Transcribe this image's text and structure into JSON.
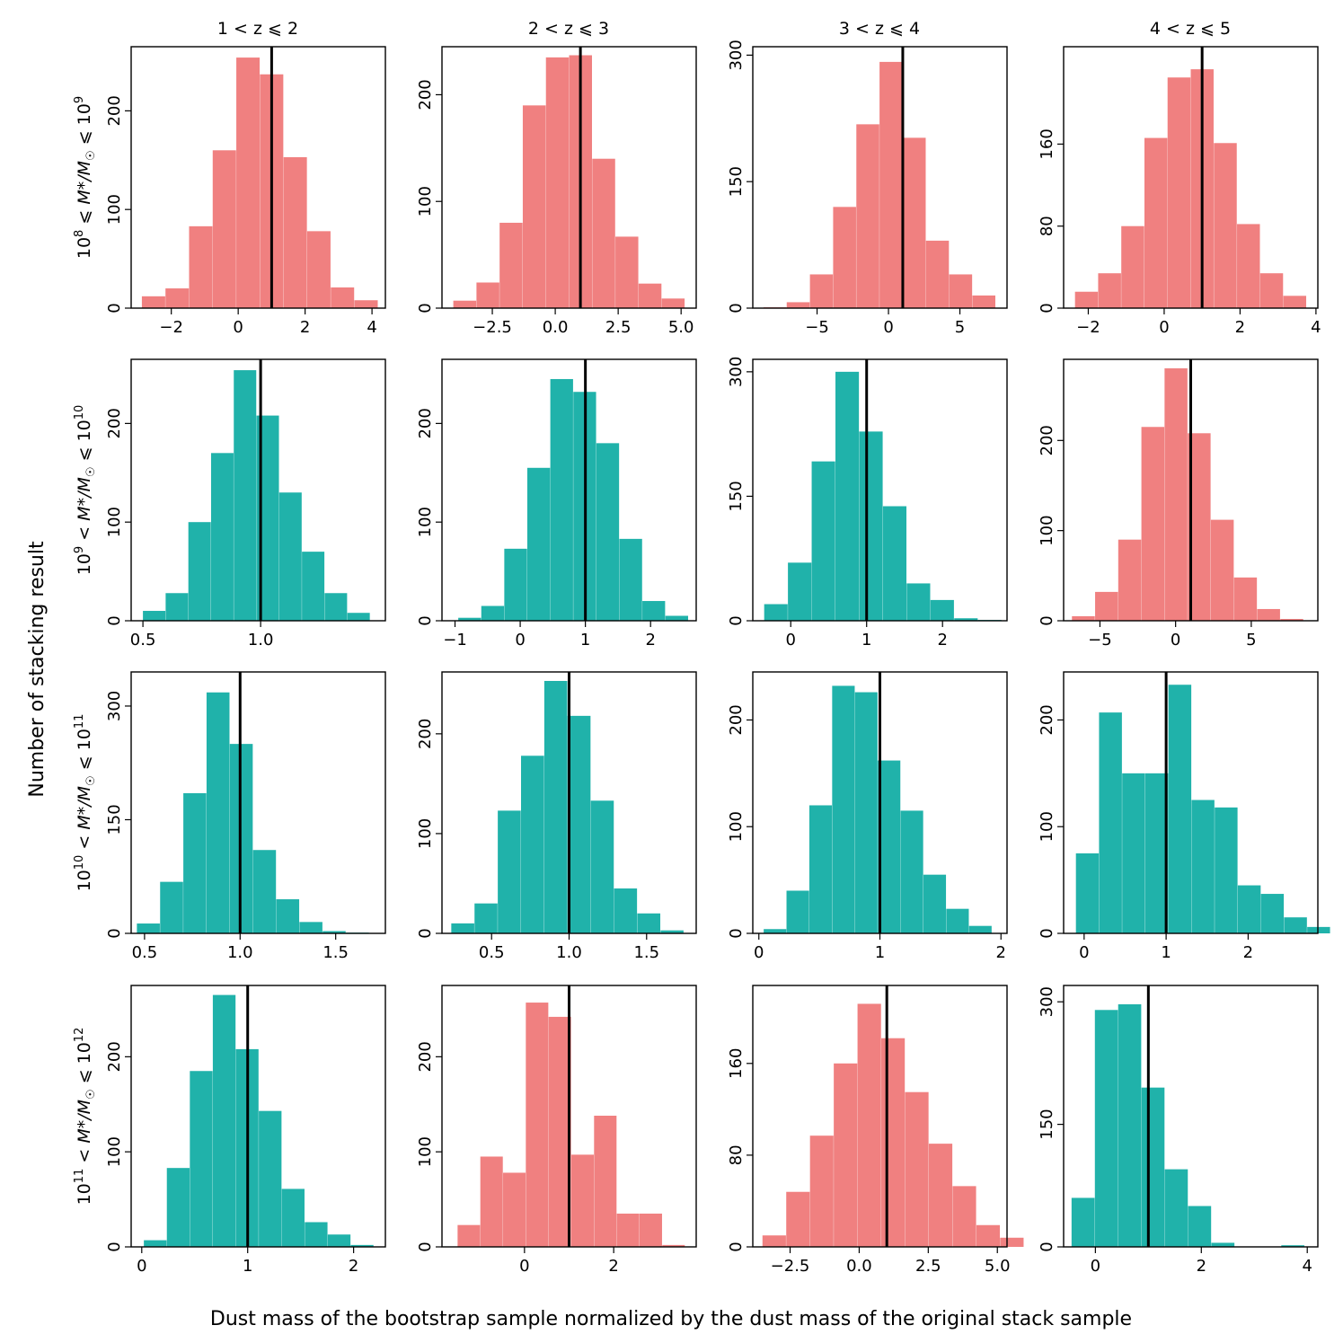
{
  "colors": {
    "red": "#f08080",
    "teal": "#20b2aa",
    "line": "#000000"
  },
  "chart_data": {
    "type": "bar",
    "figure_ylabel": "Number of stacking result",
    "figure_xlabel": "Dust mass of the bootstrap sample normalized by the dust mass of the original stack sample",
    "column_titles": [
      "1 < z ⩽ 2",
      "2 < z ⩽ 3",
      "3 < z ⩽ 4",
      "4 < z ⩽ 5"
    ],
    "row_labels": [
      {
        "base": "10",
        "e1": "8",
        "rel": " ⩽ ",
        "mid": "M",
        "midsub": "*",
        "slash": "/M",
        "sun": "☉",
        "rel2": " ⩽ ",
        "base2": "10",
        "e2": "9"
      },
      {
        "base": "10",
        "e1": "9",
        "rel": " < ",
        "mid": "M",
        "midsub": "*",
        "slash": "/M",
        "sun": "☉",
        "rel2": " ⩽ ",
        "base2": "10",
        "e2": "10"
      },
      {
        "base": "10",
        "e1": "10",
        "rel": " < ",
        "mid": "M",
        "midsub": "*",
        "slash": "/M",
        "sun": "☉",
        "rel2": " ⩽ ",
        "base2": "10",
        "e2": "11"
      },
      {
        "base": "10",
        "e1": "11",
        "rel": " < ",
        "mid": "M",
        "midsub": "*",
        "slash": "/M",
        "sun": "☉",
        "rel2": " ⩽ ",
        "base2": "10",
        "e2": "12"
      }
    ],
    "reference_line_x": 1,
    "panels": [
      {
        "row": 0,
        "col": 0,
        "color": "red",
        "xlim": [
          -3.2,
          4.4
        ],
        "ylim": [
          0,
          265
        ],
        "xticks": [
          -2,
          0,
          2,
          4
        ],
        "xticklabels": [
          "−2",
          "0",
          "2",
          "4"
        ],
        "yticks": [
          0,
          100,
          200
        ],
        "yticklabels": [
          "0",
          "100",
          "200"
        ],
        "bin_start": -2.88,
        "bin_width": 0.706,
        "counts": [
          12,
          20,
          83,
          160,
          254,
          237,
          153,
          78,
          21,
          8
        ]
      },
      {
        "row": 0,
        "col": 1,
        "color": "red",
        "xlim": [
          -4.5,
          5.6
        ],
        "ylim": [
          0,
          245
        ],
        "xticks": [
          -2.5,
          0.0,
          2.5,
          5.0
        ],
        "xticklabels": [
          "−2.5",
          "0.0",
          "2.5",
          "5.0"
        ],
        "yticks": [
          0,
          100,
          200
        ],
        "yticklabels": [
          "0",
          "100",
          "200"
        ],
        "bin_start": -4.05,
        "bin_width": 0.92,
        "counts": [
          7,
          24,
          80,
          190,
          235,
          237,
          140,
          67,
          23,
          9
        ]
      },
      {
        "row": 0,
        "col": 2,
        "color": "red",
        "xlim": [
          -9.5,
          8.3
        ],
        "ylim": [
          0,
          310
        ],
        "xticks": [
          -5,
          0,
          5
        ],
        "xticklabels": [
          "−5",
          "0",
          "5"
        ],
        "yticks": [
          0,
          150,
          300
        ],
        "yticklabels": [
          "0",
          "150",
          "300"
        ],
        "bin_start": -8.75,
        "bin_width": 1.625,
        "counts": [
          1,
          7,
          40,
          120,
          218,
          292,
          202,
          80,
          40,
          15
        ]
      },
      {
        "row": 0,
        "col": 3,
        "color": "red",
        "xlim": [
          -2.65,
          4.05
        ],
        "ylim": [
          0,
          255
        ],
        "xticks": [
          -2,
          0,
          2,
          4
        ],
        "xticklabels": [
          "−2",
          "0",
          "2",
          "4"
        ],
        "yticks": [
          0,
          80,
          160
        ],
        "yticklabels": [
          "0",
          "80",
          "160"
        ],
        "bin_start": -2.35,
        "bin_width": 0.61,
        "counts": [
          16,
          34,
          80,
          166,
          225,
          233,
          161,
          82,
          34,
          12
        ]
      },
      {
        "row": 1,
        "col": 0,
        "color": "teal",
        "xlim": [
          0.45,
          1.53
        ],
        "ylim": [
          0,
          265
        ],
        "xticks": [
          0.5,
          1.0
        ],
        "xticklabels": [
          "0.5",
          "1.0"
        ],
        "yticks": [
          0,
          100,
          200
        ],
        "yticklabels": [
          "0",
          "100",
          "200"
        ],
        "bin_start": 0.5,
        "bin_width": 0.0965,
        "counts": [
          10,
          28,
          100,
          170,
          254,
          208,
          130,
          70,
          28,
          8
        ]
      },
      {
        "row": 1,
        "col": 1,
        "color": "teal",
        "xlim": [
          -1.2,
          2.7
        ],
        "ylim": [
          0,
          265
        ],
        "xticks": [
          -1,
          0,
          1,
          2
        ],
        "xticklabels": [
          "−1",
          "0",
          "1",
          "2"
        ],
        "yticks": [
          0,
          100,
          200
        ],
        "yticklabels": [
          "0",
          "100",
          "200"
        ],
        "bin_start": -0.95,
        "bin_width": 0.353,
        "counts": [
          3,
          15,
          73,
          155,
          245,
          232,
          180,
          83,
          20,
          5
        ]
      },
      {
        "row": 1,
        "col": 2,
        "color": "teal",
        "xlim": [
          -0.5,
          2.85
        ],
        "ylim": [
          0,
          315
        ],
        "xticks": [
          0,
          1,
          2
        ],
        "xticklabels": [
          "0",
          "1",
          "2"
        ],
        "yticks": [
          0,
          150,
          300
        ],
        "yticklabels": [
          "0",
          "150",
          "300"
        ],
        "bin_start": -0.35,
        "bin_width": 0.313,
        "counts": [
          20,
          70,
          192,
          300,
          228,
          138,
          45,
          25,
          3,
          1
        ]
      },
      {
        "row": 1,
        "col": 3,
        "color": "red",
        "xlim": [
          -7.4,
          9.4
        ],
        "ylim": [
          0,
          290
        ],
        "xticks": [
          -5,
          0,
          5
        ],
        "xticklabels": [
          "−5",
          "0",
          "5"
        ],
        "yticks": [
          0,
          100,
          200
        ],
        "yticklabels": [
          "0",
          "100",
          "200"
        ],
        "bin_start": -6.85,
        "bin_width": 1.53,
        "counts": [
          5,
          32,
          90,
          215,
          280,
          208,
          112,
          48,
          13,
          2
        ]
      },
      {
        "row": 2,
        "col": 0,
        "color": "teal",
        "xlim": [
          0.43,
          1.76
        ],
        "ylim": [
          0,
          345
        ],
        "xticks": [
          0.5,
          1.0,
          1.5
        ],
        "xticklabels": [
          "0.5",
          "1.0",
          "1.5"
        ],
        "yticks": [
          0,
          150,
          300
        ],
        "yticklabels": [
          "0",
          "150",
          "300"
        ],
        "bin_start": 0.46,
        "bin_width": 0.1215,
        "counts": [
          13,
          68,
          185,
          318,
          250,
          110,
          45,
          15,
          3,
          1
        ]
      },
      {
        "row": 2,
        "col": 1,
        "color": "teal",
        "xlim": [
          0.18,
          1.82
        ],
        "ylim": [
          0,
          262
        ],
        "xticks": [
          0.5,
          1.0,
          1.5
        ],
        "xticklabels": [
          "0.5",
          "1.0",
          "1.5"
        ],
        "yticks": [
          0,
          100,
          200
        ],
        "yticklabels": [
          "0",
          "100",
          "200"
        ],
        "bin_start": 0.24,
        "bin_width": 0.15,
        "counts": [
          10,
          30,
          123,
          178,
          253,
          218,
          133,
          45,
          20,
          3
        ]
      },
      {
        "row": 2,
        "col": 2,
        "color": "teal",
        "xlim": [
          -0.05,
          2.05
        ],
        "ylim": [
          0,
          245
        ],
        "xticks": [
          0,
          1,
          2
        ],
        "xticklabels": [
          "0",
          "1",
          "2"
        ],
        "yticks": [
          0,
          100,
          200
        ],
        "yticklabels": [
          "0",
          "100",
          "200"
        ],
        "bin_start": 0.04,
        "bin_width": 0.1885,
        "counts": [
          4,
          40,
          120,
          232,
          226,
          162,
          115,
          55,
          23,
          7
        ]
      },
      {
        "row": 2,
        "col": 3,
        "color": "teal",
        "xlim": [
          -0.25,
          2.85
        ],
        "ylim": [
          0,
          245
        ],
        "xticks": [
          0,
          1,
          2
        ],
        "xticklabels": [
          "0",
          "1",
          "2"
        ],
        "yticks": [
          0,
          100,
          200
        ],
        "yticklabels": [
          "0",
          "100",
          "200"
        ],
        "bin_start": -0.1,
        "bin_width": 0.282,
        "counts": [
          75,
          207,
          150,
          150,
          233,
          125,
          118,
          45,
          37,
          15,
          6
        ]
      },
      {
        "row": 3,
        "col": 0,
        "color": "teal",
        "xlim": [
          -0.1,
          2.3
        ],
        "ylim": [
          0,
          275
        ],
        "xticks": [
          0,
          1,
          2
        ],
        "xticklabels": [
          "0",
          "1",
          "2"
        ],
        "yticks": [
          0,
          100,
          200
        ],
        "yticklabels": [
          "0",
          "100",
          "200"
        ],
        "bin_start": 0.02,
        "bin_width": 0.217,
        "counts": [
          7,
          83,
          185,
          265,
          208,
          143,
          61,
          26,
          13,
          2
        ]
      },
      {
        "row": 3,
        "col": 1,
        "color": "red",
        "xlim": [
          -1.85,
          3.85
        ],
        "ylim": [
          0,
          275
        ],
        "xticks": [
          0,
          2
        ],
        "xticklabels": [
          "0",
          "2"
        ],
        "yticks": [
          0,
          100,
          200
        ],
        "yticklabels": [
          "0",
          "100",
          "200"
        ],
        "bin_start": -1.5,
        "bin_width": 0.51,
        "counts": [
          23,
          95,
          78,
          257,
          242,
          97,
          138,
          35,
          35,
          2
        ]
      },
      {
        "row": 3,
        "col": 2,
        "color": "red",
        "xlim": [
          -3.85,
          5.35
        ],
        "ylim": [
          0,
          228
        ],
        "xticks": [
          -2.5,
          0.0,
          2.5,
          5.0
        ],
        "xticklabels": [
          "−2.5",
          "0.0",
          "2.5",
          "5.0"
        ],
        "yticks": [
          0,
          80,
          160
        ],
        "yticklabels": [
          "0",
          "80",
          "160"
        ],
        "bin_start": -3.5,
        "bin_width": 0.86,
        "counts": [
          10,
          48,
          97,
          160,
          212,
          182,
          135,
          90,
          53,
          19,
          8
        ]
      },
      {
        "row": 3,
        "col": 3,
        "color": "teal",
        "xlim": [
          -0.6,
          4.2
        ],
        "ylim": [
          0,
          320
        ],
        "xticks": [
          0,
          2,
          4
        ],
        "xticklabels": [
          "0",
          "2",
          "4"
        ],
        "yticks": [
          0,
          150,
          300
        ],
        "yticklabels": [
          "0",
          "150",
          "300"
        ],
        "bin_start": -0.45,
        "bin_width": 0.44,
        "counts": [
          60,
          290,
          297,
          195,
          95,
          50,
          5,
          0,
          0,
          2
        ]
      }
    ]
  }
}
